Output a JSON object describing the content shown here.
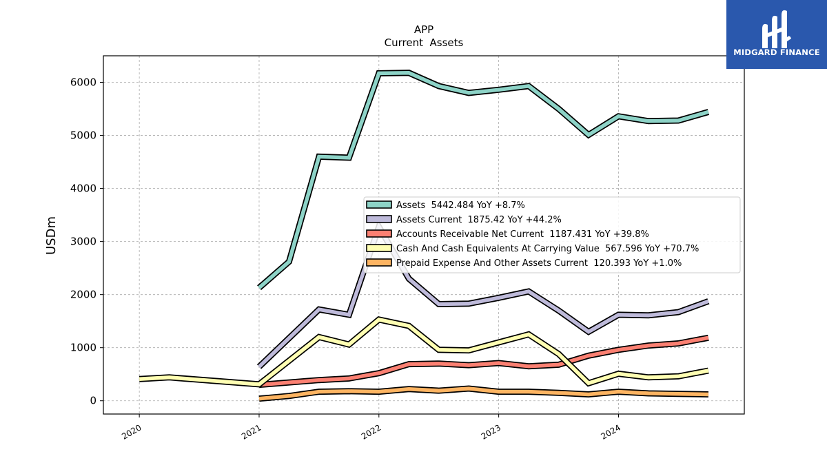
{
  "logo": {
    "name": "MIDGARD FINANCE"
  },
  "chart_data": {
    "type": "line",
    "title": "APP",
    "subtitle": "Current  Assets",
    "ylabel": "USDm",
    "xlim": [
      2019.7,
      2025.05
    ],
    "ylim": [
      -250,
      6500
    ],
    "xticks": [
      "2020",
      "2021",
      "2022",
      "2023",
      "2024"
    ],
    "yticks": [
      0,
      1000,
      2000,
      3000,
      4000,
      5000,
      6000
    ],
    "grid": true,
    "legend_position": "center-right",
    "series": [
      {
        "name": "Assets",
        "legend": "Assets  5442.484 YoY +8.7%",
        "color": "#8dd3c7",
        "x": [
          2021.0,
          2021.25,
          2021.5,
          2021.75,
          2022.0,
          2022.25,
          2022.5,
          2022.75,
          2023.0,
          2023.25,
          2023.5,
          2023.75,
          2024.0,
          2024.25,
          2024.5,
          2024.75
        ],
        "y": [
          2130,
          2620,
          4600,
          4580,
          6170,
          6180,
          5930,
          5800,
          5860,
          5930,
          5500,
          5010,
          5360,
          5270,
          5280,
          5442
        ]
      },
      {
        "name": "Assets Current",
        "legend": "Assets Current  1875.42 YoY +44.2%",
        "color": "#bebada",
        "x": [
          2021.0,
          2021.5,
          2021.75,
          2022.0,
          2022.25,
          2022.5,
          2022.75,
          2023.0,
          2023.25,
          2023.5,
          2023.75,
          2024.0,
          2024.25,
          2024.5,
          2024.75
        ],
        "y": [
          640,
          1720,
          1620,
          3280,
          2300,
          1820,
          1830,
          1940,
          2060,
          1700,
          1300,
          1620,
          1610,
          1670,
          1875
        ]
      },
      {
        "name": "Accounts Receivable Net Current",
        "legend": "Accounts Receivable Net Current  1187.431 YoY +39.8%",
        "color": "#fb8072",
        "x": [
          2021.0,
          2021.5,
          2021.75,
          2022.0,
          2022.25,
          2022.5,
          2022.75,
          2023.0,
          2023.25,
          2023.5,
          2023.75,
          2024.0,
          2024.25,
          2024.5,
          2024.75
        ],
        "y": [
          300,
          390,
          420,
          520,
          690,
          700,
          670,
          710,
          650,
          680,
          850,
          960,
          1040,
          1080,
          1187
        ]
      },
      {
        "name": "Cash And Cash Equivalents At Carrying Value",
        "legend": "Cash And Cash Equivalents At Carrying Value  567.596 YoY +70.7%",
        "color": "#ffffb3",
        "x": [
          2020.0,
          2020.25,
          2021.0,
          2021.5,
          2021.75,
          2022.0,
          2022.25,
          2022.5,
          2022.75,
          2023.0,
          2023.25,
          2023.5,
          2023.75,
          2024.0,
          2024.25,
          2024.5,
          2024.75
        ],
        "y": [
          410,
          440,
          310,
          1200,
          1060,
          1530,
          1410,
          960,
          950,
          1100,
          1250,
          880,
          330,
          510,
          440,
          460,
          568
        ]
      },
      {
        "name": "Prepaid Expense And Other Assets Current",
        "legend": "Prepaid Expense And Other Assets Current  120.393 YoY +1.0%",
        "color": "#fdb462",
        "x": [
          2021.0,
          2021.25,
          2021.5,
          2021.75,
          2022.0,
          2022.25,
          2022.5,
          2022.75,
          2023.0,
          2023.25,
          2023.5,
          2023.75,
          2024.0,
          2024.25,
          2024.5,
          2024.75
        ],
        "y": [
          40,
          90,
          170,
          180,
          170,
          220,
          190,
          230,
          170,
          170,
          150,
          120,
          170,
          140,
          130,
          120
        ]
      }
    ]
  }
}
